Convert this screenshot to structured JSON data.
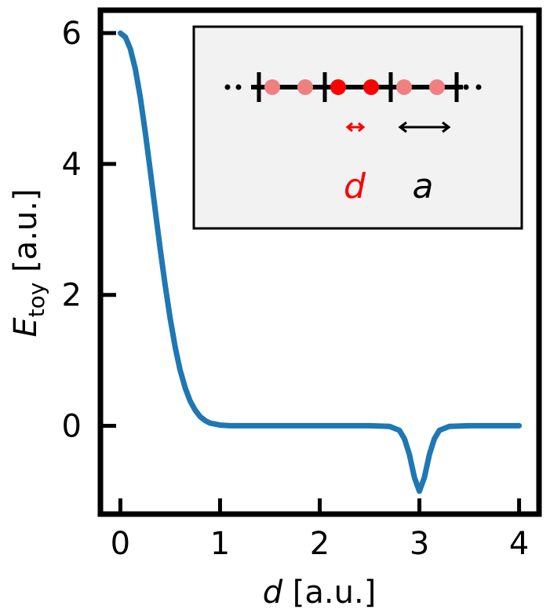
{
  "chart_data": {
    "type": "line",
    "title": "",
    "xlabel": {
      "var": "d",
      "unit": " [a.u.]"
    },
    "ylabel": {
      "var": "E",
      "sub": "toy",
      "unit": " [a.u.]"
    },
    "xlim": [
      -0.2,
      4.2
    ],
    "ylim": [
      -1.35,
      6.35
    ],
    "xticks": [
      0,
      1,
      2,
      3,
      4
    ],
    "xtick_labels": [
      "0",
      "1",
      "2",
      "3",
      "4"
    ],
    "yticks": [
      0,
      2,
      4,
      6
    ],
    "ytick_labels": [
      "0",
      "2",
      "4",
      "6"
    ],
    "grid": false,
    "legend": "none",
    "series": [
      {
        "color": "#1f77b4",
        "x": [
          0.0,
          0.05,
          0.1,
          0.15,
          0.2,
          0.25,
          0.3,
          0.35,
          0.4,
          0.45,
          0.5,
          0.55,
          0.6,
          0.65,
          0.7,
          0.75,
          0.8,
          0.85,
          0.9,
          1.0,
          1.1,
          1.2,
          1.5,
          2.0,
          2.5,
          2.7,
          2.8,
          2.85,
          2.9,
          2.95,
          3.0,
          3.05,
          3.1,
          3.15,
          3.2,
          3.3,
          3.5,
          4.0
        ],
        "y": [
          6.0,
          5.94,
          5.76,
          5.45,
          5.02,
          4.48,
          3.9,
          3.29,
          2.7,
          2.14,
          1.64,
          1.2,
          0.85,
          0.58,
          0.38,
          0.24,
          0.14,
          0.08,
          0.04,
          0.01,
          0.0,
          0.0,
          0.0,
          0.0,
          0.0,
          -0.01,
          -0.07,
          -0.2,
          -0.44,
          -0.79,
          -1.0,
          -0.79,
          -0.44,
          -0.2,
          -0.07,
          -0.01,
          0.0,
          0.0
        ]
      }
    ],
    "inset": {
      "background": "#f2f2f2",
      "cell_ticks": 4,
      "atom_color_dimer": "#ff0000",
      "atom_color_other": "#f08080",
      "arrow_color_d": "#ff0000",
      "arrow_color_a": "#000000",
      "label_d": "d",
      "label_a": "a"
    }
  }
}
